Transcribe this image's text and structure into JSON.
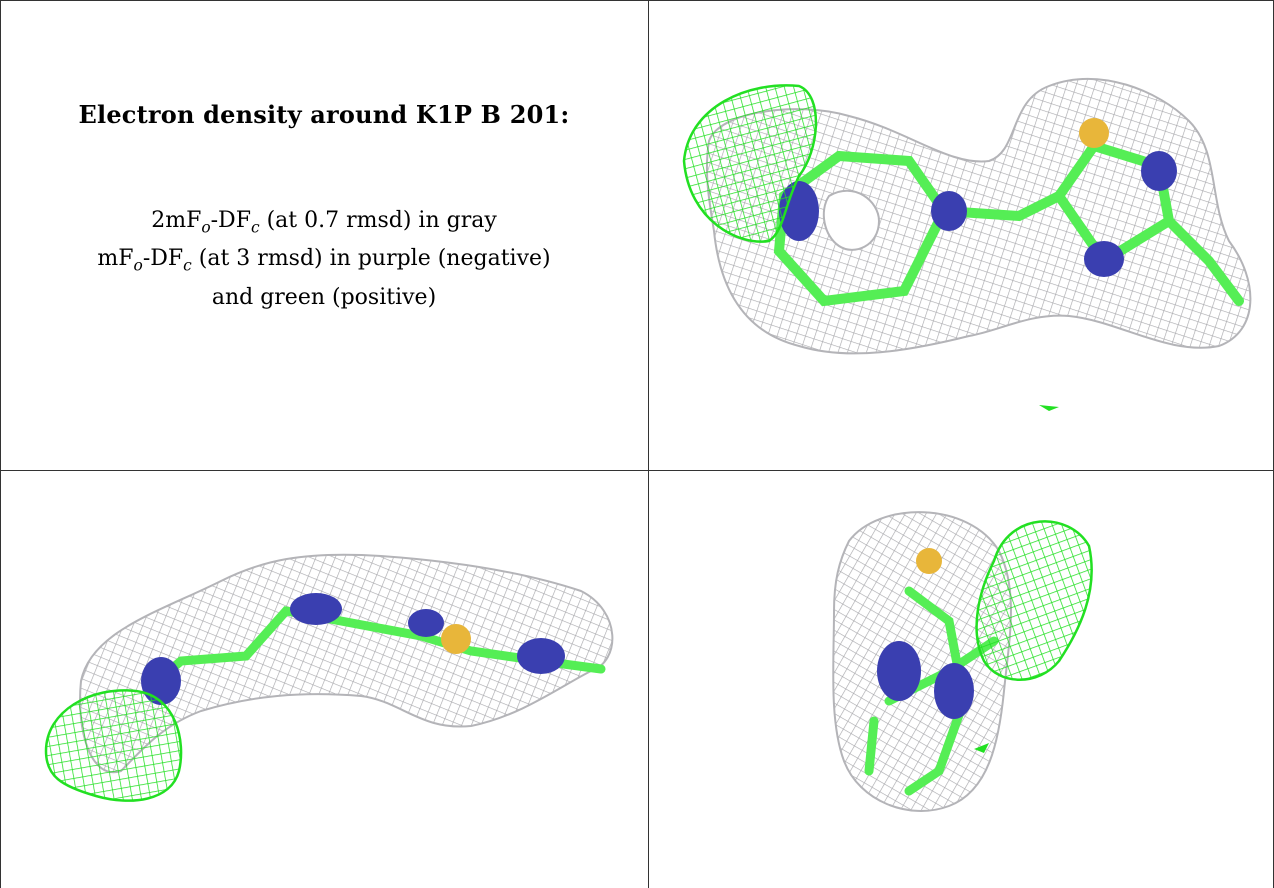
{
  "header": {
    "title": "Electron density around K1P B 201:"
  },
  "legend": {
    "line1_prefix": "2mF",
    "line1_sub1": "o",
    "line1_mid": "-DF",
    "line1_sub2": "c",
    "line1_suffix": " (at 0.7 rmsd) in gray",
    "line2_prefix": "mF",
    "line2_sub1": "o",
    "line2_mid": "-DF",
    "line2_sub2": "c",
    "line2_suffix": " (at 3 rmsd) in purple (negative)",
    "line3": "and green (positive)"
  },
  "colors": {
    "gray_mesh": "#a9a9ad",
    "green_mesh": "#22e022",
    "bond_green": "#55ee55",
    "nitrogen_blue": "#3a3fb0",
    "sulfur_yellow": "#e8b63a",
    "border": "#333333"
  },
  "panels": [
    {
      "name": "view-top-right"
    },
    {
      "name": "view-bottom-left"
    },
    {
      "name": "view-bottom-right"
    }
  ]
}
